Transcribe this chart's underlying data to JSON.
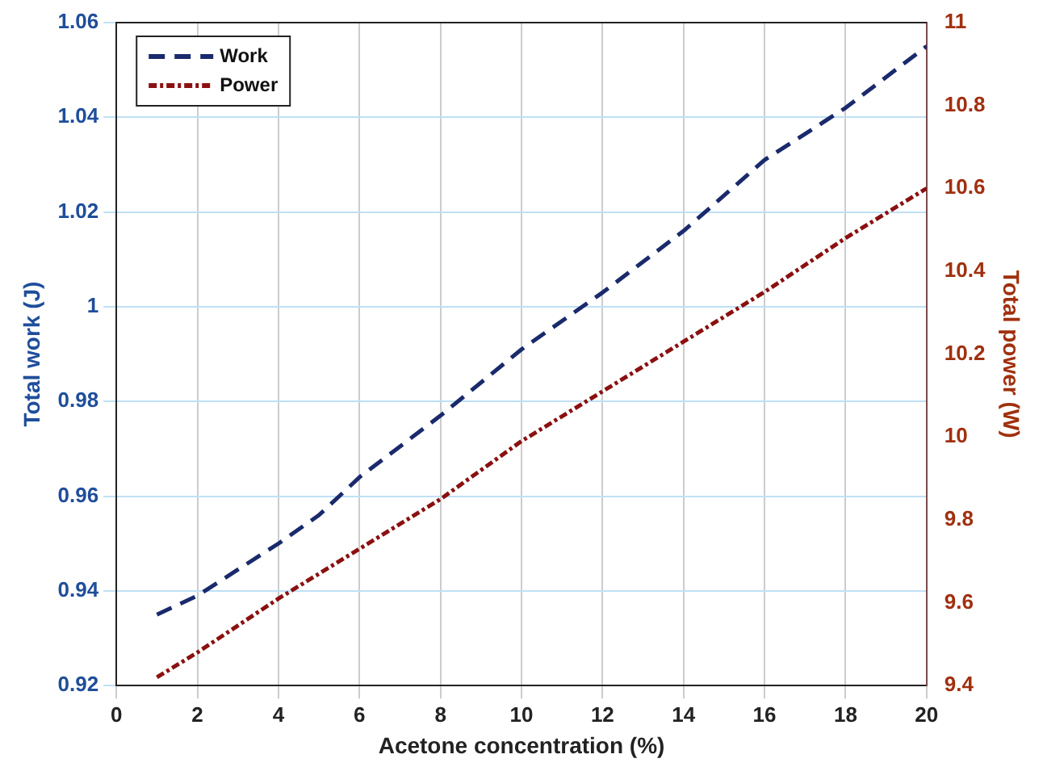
{
  "chart_data": {
    "type": "line",
    "xlabel": "Acetone concentration (%)",
    "ylabel": "Total work (J)",
    "y2label": "Total power (W)",
    "x": [
      1,
      2,
      4,
      5,
      6,
      8,
      10,
      12,
      14,
      16,
      18,
      20
    ],
    "series": [
      {
        "name": "Work",
        "color": "#1a2a6c",
        "line_style": "dashed",
        "values": [
          0.935,
          0.939,
          0.95,
          0.956,
          0.964,
          0.977,
          0.991,
          1.003,
          1.016,
          1.031,
          1.042,
          1.055
        ]
      },
      {
        "name": "Power",
        "color": "#8b1010",
        "line_style": "dotted",
        "axis": "y2",
        "values": [
          9.42,
          9.48,
          9.61,
          9.67,
          9.73,
          9.85,
          9.99,
          10.11,
          10.23,
          10.35,
          10.48,
          10.6
        ]
      }
    ],
    "xlim": [
      0,
      20
    ],
    "xticks": [
      0,
      2,
      4,
      6,
      8,
      10,
      12,
      14,
      16,
      18,
      20
    ],
    "ylim": [
      0.92,
      1.06
    ],
    "yticks": [
      0.92,
      0.94,
      0.96,
      0.98,
      1,
      1.02,
      1.04,
      1.06
    ],
    "y2lim": [
      9.4,
      11
    ],
    "y2ticks": [
      9.4,
      9.6,
      9.8,
      10,
      10.2,
      10.4,
      10.6,
      10.8,
      11
    ],
    "grid": true,
    "legend": "top left",
    "marker": "none"
  }
}
